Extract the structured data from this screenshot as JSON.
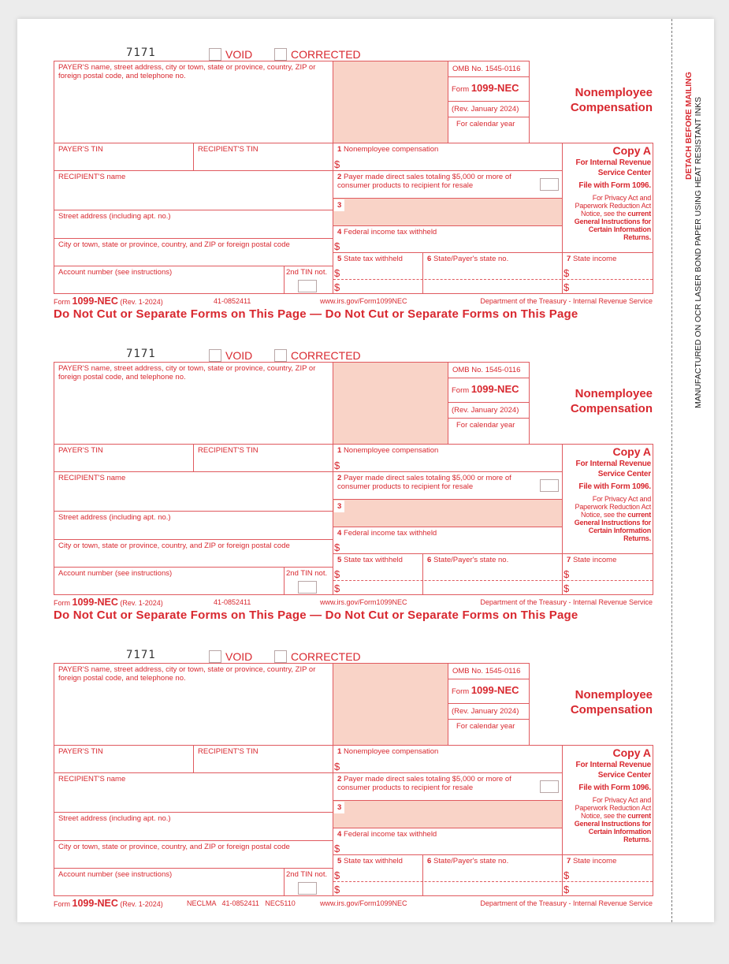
{
  "side_text": {
    "detach": "DETACH BEFORE MAILING",
    "manufactured": "MANUFACTURED ON OCR LASER BOND PAPER USING HEAT RESISTANT INKS"
  },
  "colors": {
    "form_red": "#d8282f",
    "shade": "#f9d3c7"
  },
  "forms": [
    {
      "code": "7171",
      "void": "VOID",
      "corrected": "CORRECTED",
      "payer_label": "PAYER'S name, street address, city or town, state or province, country, ZIP or foreign postal code, and telephone no.",
      "omb": "OMB No. 1545-0116",
      "form_word": "Form",
      "form_no": "1099-NEC",
      "rev": "(Rev. January 2024)",
      "cal_year": "For calendar year",
      "title": "Nonemployee Compensation",
      "payer_tin": "PAYER'S TIN",
      "recipient_tin": "RECIPIENT'S TIN",
      "b1n": "1",
      "b1": "Nonemployee compensation",
      "b2n": "2",
      "b2": "Payer made direct sales totaling $5,000 or more of consumer products to recipient for resale",
      "b3n": "3",
      "b4n": "4",
      "b4": "Federal income tax withheld",
      "b5n": "5",
      "b5": "State tax withheld",
      "b6n": "6",
      "b6": "State/Payer's state no.",
      "b7n": "7",
      "b7": "State income",
      "dollar": "$",
      "recipient_name": "RECIPIENT'S name",
      "street": "Street address (including apt. no.)",
      "city": "City or town, state or province, country, and ZIP or foreign postal code",
      "account": "Account number (see instructions)",
      "tin2": "2nd TIN not.",
      "copy": "Copy A",
      "copy_for": "For Internal Revenue Service Center",
      "file_with": "File with Form 1096.",
      "privacy_1": "For Privacy Act and Paperwork Reduction Act Notice, see the",
      "privacy_2": "current General Instructions for Certain Information Returns.",
      "foot_form": "Form",
      "foot_no": "1099-NEC",
      "foot_rev": "(Rev. 1-2024)",
      "foot_codes": "41-0852411",
      "foot_url": "www.irs.gov/Form1099NEC",
      "foot_dept": "Department of the Treasury - Internal Revenue Service",
      "do_not_cut": "Do Not Cut or Separate Forms on This Page — Do Not Cut or Separate Forms on This Page"
    },
    {
      "code": "7171",
      "void": "VOID",
      "corrected": "CORRECTED",
      "payer_label": "PAYER'S name, street address, city or town, state or province, country, ZIP or foreign postal code, and telephone no.",
      "omb": "OMB No. 1545-0116",
      "form_word": "Form",
      "form_no": "1099-NEC",
      "rev": "(Rev. January 2024)",
      "cal_year": "For calendar year",
      "title": "Nonemployee Compensation",
      "payer_tin": "PAYER'S TIN",
      "recipient_tin": "RECIPIENT'S TIN",
      "b1n": "1",
      "b1": "Nonemployee compensation",
      "b2n": "2",
      "b2": "Payer made direct sales totaling $5,000 or more of consumer products to recipient for resale",
      "b3n": "3",
      "b4n": "4",
      "b4": "Federal income tax withheld",
      "b5n": "5",
      "b5": "State tax withheld",
      "b6n": "6",
      "b6": "State/Payer's state no.",
      "b7n": "7",
      "b7": "State income",
      "dollar": "$",
      "recipient_name": "RECIPIENT'S name",
      "street": "Street address (including apt. no.)",
      "city": "City or town, state or province, country, and ZIP or foreign postal code",
      "account": "Account number (see instructions)",
      "tin2": "2nd TIN not.",
      "copy": "Copy A",
      "copy_for": "For Internal Revenue Service Center",
      "file_with": "File with Form 1096.",
      "privacy_1": "For Privacy Act and Paperwork Reduction Act Notice, see the",
      "privacy_2": "current General Instructions for Certain Information Returns.",
      "foot_form": "Form",
      "foot_no": "1099-NEC",
      "foot_rev": "(Rev. 1-2024)",
      "foot_codes": "41-0852411",
      "foot_url": "www.irs.gov/Form1099NEC",
      "foot_dept": "Department of the Treasury - Internal Revenue Service",
      "do_not_cut": "Do Not Cut or Separate Forms on This Page — Do Not Cut or Separate Forms on This Page"
    },
    {
      "code": "7171",
      "void": "VOID",
      "corrected": "CORRECTED",
      "payer_label": "PAYER'S name, street address, city or town, state or province, country, ZIP or foreign postal code, and telephone no.",
      "omb": "OMB No. 1545-0116",
      "form_word": "Form",
      "form_no": "1099-NEC",
      "rev": "(Rev. January 2024)",
      "cal_year": "For calendar year",
      "title": "Nonemployee Compensation",
      "payer_tin": "PAYER'S TIN",
      "recipient_tin": "RECIPIENT'S TIN",
      "b1n": "1",
      "b1": "Nonemployee compensation",
      "b2n": "2",
      "b2": "Payer made direct sales totaling $5,000 or more of consumer products to recipient for resale",
      "b3n": "3",
      "b4n": "4",
      "b4": "Federal income tax withheld",
      "b5n": "5",
      "b5": "State tax withheld",
      "b6n": "6",
      "b6": "State/Payer's state no.",
      "b7n": "7",
      "b7": "State income",
      "dollar": "$",
      "recipient_name": "RECIPIENT'S name",
      "street": "Street address (including apt. no.)",
      "city": "City or town, state or province, country, and ZIP or foreign postal code",
      "account": "Account number (see instructions)",
      "tin2": "2nd TIN not.",
      "copy": "Copy A",
      "copy_for": "For Internal Revenue Service Center",
      "file_with": "File with Form 1096.",
      "privacy_1": "For Privacy Act and Paperwork Reduction Act Notice, see the",
      "privacy_2": "current General Instructions for Certain Information Returns.",
      "foot_form": "Form",
      "foot_no": "1099-NEC",
      "foot_rev": "(Rev. 1-2024)",
      "foot_codes": "NECLMA   41-0852411   NEC5110",
      "foot_url": "www.irs.gov/Form1099NEC",
      "foot_dept": "Department of the Treasury - Internal Revenue Service",
      "do_not_cut": ""
    }
  ]
}
